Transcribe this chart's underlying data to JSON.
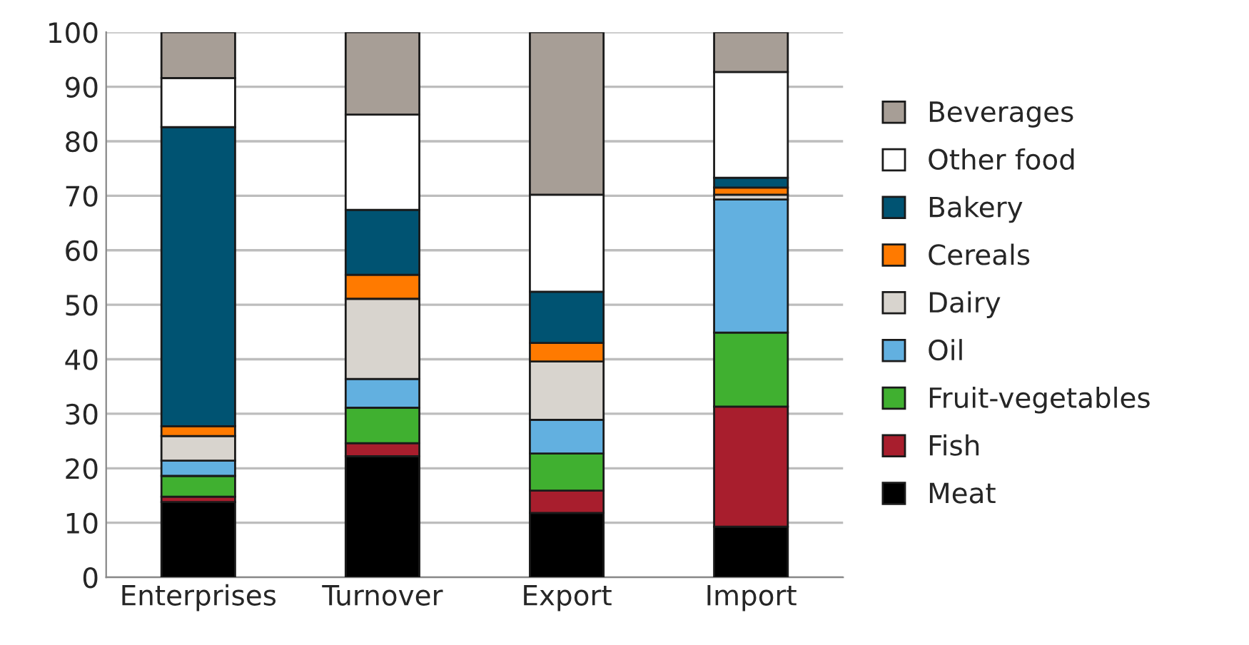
{
  "chart_data": {
    "type": "bar",
    "stacked": true,
    "categories": [
      "Enterprises",
      "Turnover",
      "Export",
      "Import"
    ],
    "series": [
      {
        "name": "Meat",
        "color": "#000000",
        "values": [
          13.8,
          22.2,
          11.8,
          9.3
        ]
      },
      {
        "name": "Fish",
        "color": "#a81e2d",
        "values": [
          1.0,
          2.4,
          4.1,
          22.0
        ]
      },
      {
        "name": "Fruit-vegetables",
        "color": "#40b030",
        "values": [
          3.8,
          6.5,
          6.8,
          13.6
        ]
      },
      {
        "name": "Oil",
        "color": "#62b0e0",
        "values": [
          2.8,
          5.3,
          6.2,
          24.4
        ]
      },
      {
        "name": "Dairy",
        "color": "#d8d4ce",
        "values": [
          4.5,
          14.7,
          10.7,
          0.9
        ]
      },
      {
        "name": "Cereals",
        "color": "#ff7a00",
        "values": [
          1.8,
          4.4,
          3.4,
          1.3
        ]
      },
      {
        "name": "Bakery",
        "color": "#005372",
        "values": [
          54.9,
          11.9,
          9.4,
          1.8
        ]
      },
      {
        "name": "Other food",
        "color": "#ffffff",
        "values": [
          9.0,
          17.5,
          17.8,
          19.4
        ]
      },
      {
        "name": "Beverages",
        "color": "#a79e96",
        "values": [
          8.4,
          15.1,
          29.8,
          7.3
        ]
      }
    ],
    "ylim": [
      0,
      100
    ],
    "yticks": [
      0,
      10,
      20,
      30,
      40,
      50,
      60,
      70,
      80,
      90,
      100
    ],
    "grid": "y",
    "legend": "right"
  }
}
